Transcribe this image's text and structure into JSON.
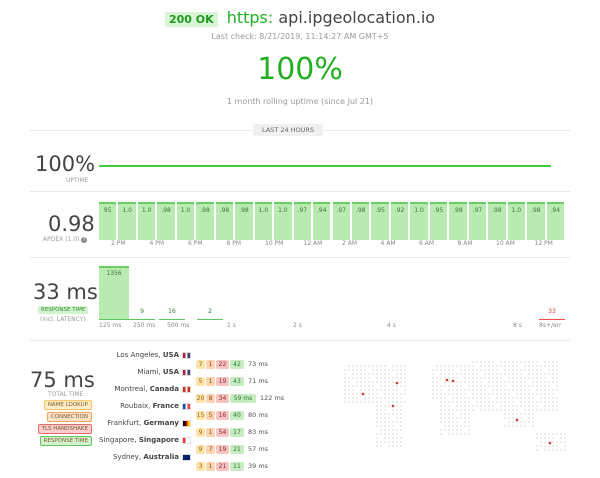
{
  "header": {
    "status_badge": "200 OK",
    "protocol": "https:",
    "host": "api.ipgeolocation.io",
    "last_check": "Last check: 8/21/2019, 11:14:27 AM GMT+5",
    "uptime_percent": "100%",
    "rolling_caption": "1 month rolling uptime (since Jul 21)"
  },
  "range_tab": "LAST 24 HOURS",
  "uptime": {
    "value": "100%",
    "label": "UPTIME"
  },
  "apdex": {
    "value": "0.98",
    "label": "APDEX (1.0)",
    "help_icon": "question-circle-icon",
    "bars": [
      "95",
      "1.0",
      "1.0",
      ".98",
      "1.0",
      ".98",
      ".98",
      ".98",
      "1.0",
      "1.0",
      ".97",
      ".94",
      ".97",
      ".98",
      ".95",
      ".92",
      "1.0",
      ".95",
      ".98",
      ".97",
      ".98",
      "1.0",
      ".98",
      ".94"
    ],
    "x_ticks": [
      "2 PM",
      "4 PM",
      "6 PM",
      "8 PM",
      "10 PM",
      "12 AM",
      "2 AM",
      "4 AM",
      "6 AM",
      "8 AM",
      "10 AM",
      "12 PM"
    ]
  },
  "response": {
    "value": "33 ms",
    "label": "RESPONSE TIME",
    "sublabel": "(incl. LATENCY)",
    "histogram": [
      {
        "count": "1356",
        "level": 1.0
      },
      {
        "count": "9",
        "level": 0.007
      },
      {
        "count": "16",
        "level": 0.012
      },
      {
        "count": "2",
        "level": 0.002
      },
      {
        "count": "",
        "level": 0
      },
      {
        "count": "",
        "level": 0
      },
      {
        "count": "",
        "level": 0
      },
      {
        "count": "",
        "level": 0
      },
      {
        "count": "",
        "level": 0
      },
      {
        "count": "33",
        "level": 0.024
      }
    ],
    "x_ticks": [
      "125 ms",
      "250 ms",
      "500 ms",
      "1 s",
      "2 s",
      "4 s",
      "8 s",
      "8s+/err"
    ]
  },
  "total": {
    "value": "75 ms",
    "label": "TOTAL TIME",
    "legend": [
      {
        "label": "NAME LOOKUP",
        "color": "#f9c76a",
        "bg": "#fdebc4"
      },
      {
        "label": "CONNECTION",
        "color": "#f0a35a",
        "bg": "#fde1c8"
      },
      {
        "label": "TLS HANDSHAKE",
        "color": "#e86b6b",
        "bg": "#f9cdcd"
      },
      {
        "label": "RESPONSE TIME",
        "color": "#5ec85e",
        "bg": "#d4f2d0"
      }
    ],
    "locations": [
      {
        "city": "Los Angeles,",
        "country": "USA",
        "flag": "us-flag-icon",
        "flagColors": [
          "#b22234",
          "#ffffff",
          "#3c3b6e"
        ],
        "segs": [
          "7",
          "1",
          "22",
          "42"
        ],
        "total": "73 ms"
      },
      {
        "city": "Miami,",
        "country": "USA",
        "flag": "us-flag-icon",
        "flagColors": [
          "#b22234",
          "#ffffff",
          "#3c3b6e"
        ],
        "segs": [
          "5",
          "1",
          "19",
          "43"
        ],
        "total": "71 ms"
      },
      {
        "city": "Montreal,",
        "country": "Canada",
        "flag": "canada-flag-icon",
        "flagColors": [
          "#d52b1e",
          "#ffffff",
          "#d52b1e"
        ],
        "segs": [
          "20",
          "8",
          "34",
          "59 ms"
        ],
        "total": "122 ms"
      },
      {
        "city": "Roubaix,",
        "country": "France",
        "flag": "france-flag-icon",
        "flagColors": [
          "#0055a4",
          "#ffffff",
          "#ef4135"
        ],
        "segs": [
          "15",
          "5",
          "16",
          "40"
        ],
        "total": "80 ms"
      },
      {
        "city": "Frankfurt,",
        "country": "Germany",
        "flag": "germany-flag-icon",
        "flagColors": [
          "#000000",
          "#dd0000",
          "#ffce00"
        ],
        "segs": [
          "9",
          "1",
          "54",
          "17"
        ],
        "total": "83 ms"
      },
      {
        "city": "Singapore,",
        "country": "Singapore",
        "flag": "singapore-flag-icon",
        "flagColors": [
          "#ef3340",
          "#ffffff",
          "#ffffff"
        ],
        "segs": [
          "9",
          "7",
          "19",
          "21"
        ],
        "total": "57 ms"
      },
      {
        "city": "Sydney,",
        "country": "Australia",
        "flag": "australia-flag-icon",
        "flagColors": [
          "#012169",
          "#012169",
          "#012169"
        ],
        "segs": [
          "3",
          "1",
          "21",
          "11"
        ],
        "total": "39 ms"
      }
    ]
  }
}
